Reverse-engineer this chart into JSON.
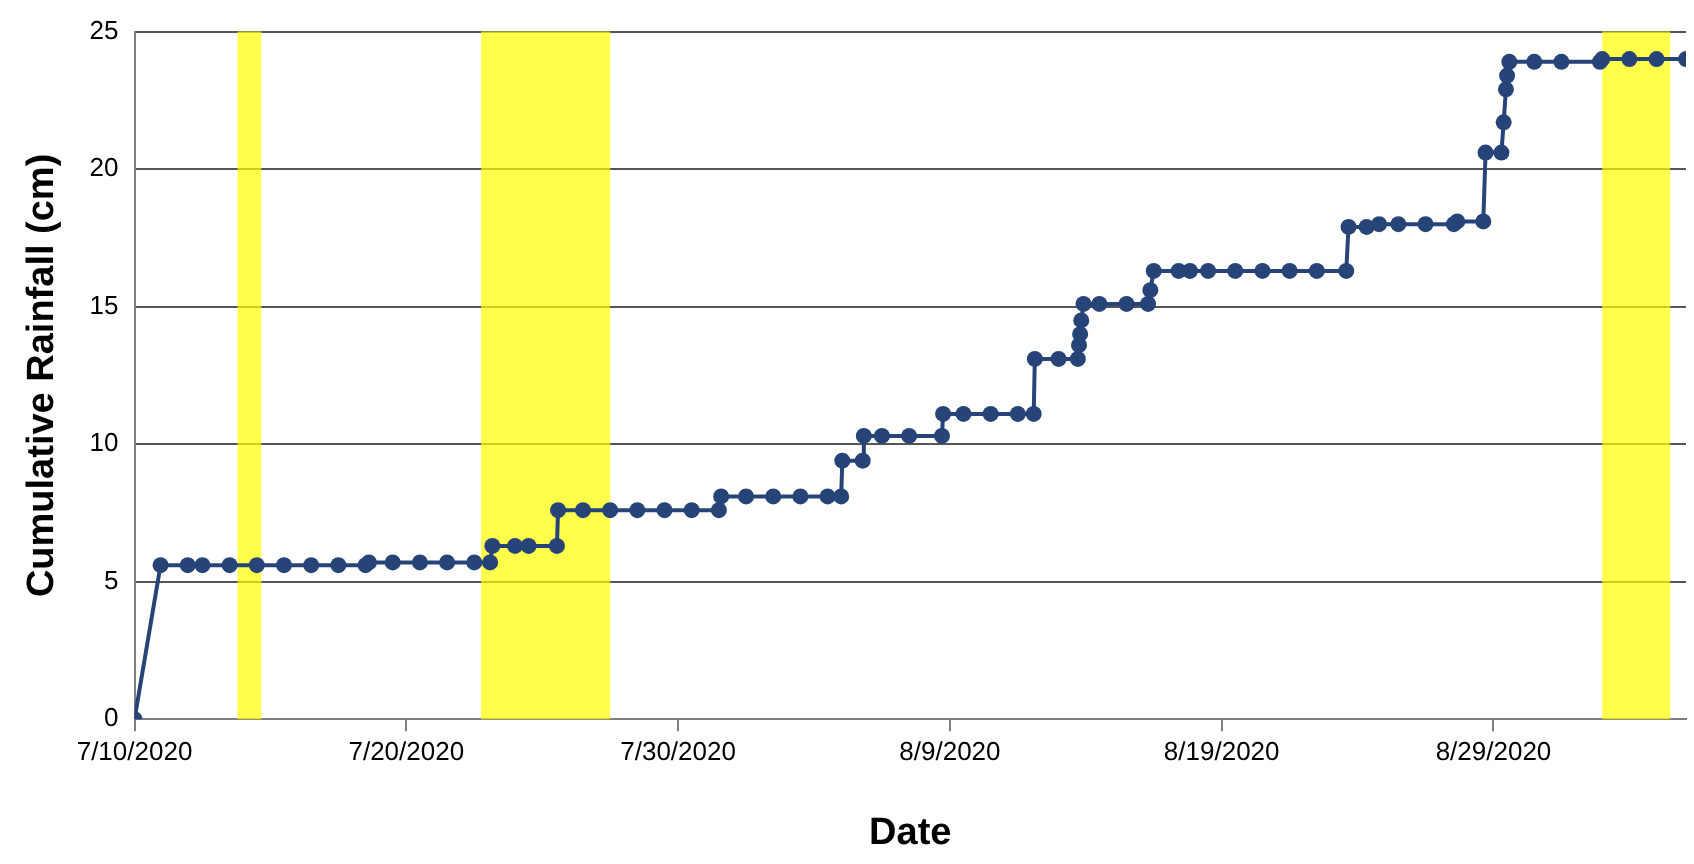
{
  "chart_data": {
    "type": "line",
    "xlabel": "Date",
    "ylabel": "Cumulative Rainfall (cm)",
    "xlim": [
      "2020-07-10",
      "2020-09-05T02:00"
    ],
    "ylim": [
      0,
      25
    ],
    "yticks": [
      0,
      5,
      10,
      15,
      20,
      25
    ],
    "xticks": [
      {
        "value": "2020-07-10",
        "label": "7/10/2020"
      },
      {
        "value": "2020-07-20",
        "label": "7/20/2020"
      },
      {
        "value": "2020-07-30",
        "label": "7/30/2020"
      },
      {
        "value": "2020-08-09",
        "label": "8/9/2020"
      },
      {
        "value": "2020-08-19",
        "label": "8/19/2020"
      },
      {
        "value": "2020-08-29",
        "label": "8/29/2020"
      }
    ],
    "grid": "y",
    "legend": false,
    "marker": "circle",
    "line_style": "solid",
    "bands": [
      {
        "axis": "x",
        "from": "2020-07-13T19:00",
        "to": "2020-07-14T16:00",
        "label": null,
        "color": "#ffff00"
      },
      {
        "axis": "x",
        "from": "2020-07-22T18:00",
        "to": "2020-07-27T12:00",
        "label": null,
        "color": "#ffff00"
      },
      {
        "axis": "x",
        "from": "2020-09-02T00:00",
        "to": "2020-09-04T12:00",
        "label": null,
        "color": "#ffff00"
      }
    ],
    "series": [
      {
        "color": "#264478",
        "x": [
          "2020-07-10T00:00",
          "2020-07-10T23:00",
          "2020-07-11T23:00",
          "2020-07-12T12:00",
          "2020-07-13T12:00",
          "2020-07-14T12:00",
          "2020-07-15T12:00",
          "2020-07-16T12:00",
          "2020-07-17T12:00",
          "2020-07-18T12:00",
          "2020-07-18T15:00",
          "2020-07-19T12:00",
          "2020-07-20T12:00",
          "2020-07-21T12:00",
          "2020-07-22T12:00",
          "2020-07-23T02:00",
          "2020-07-23T04:00",
          "2020-07-24T00:00",
          "2020-07-24T12:00",
          "2020-07-25T13:00",
          "2020-07-25T14:00",
          "2020-07-26T12:00",
          "2020-07-27T12:00",
          "2020-07-28T12:00",
          "2020-07-29T12:00",
          "2020-07-30T12:00",
          "2020-07-31T12:00",
          "2020-07-31T14:00",
          "2020-08-01T12:00",
          "2020-08-02T12:00",
          "2020-08-03T12:00",
          "2020-08-04T12:00",
          "2020-08-05T00:00",
          "2020-08-05T01:00",
          "2020-08-05T19:00",
          "2020-08-05T20:00",
          "2020-08-06T12:00",
          "2020-08-07T12:00",
          "2020-08-08T17:00",
          "2020-08-08T18:00",
          "2020-08-09T12:00",
          "2020-08-10T12:00",
          "2020-08-11T12:00",
          "2020-08-12T02:00",
          "2020-08-12T03:00",
          "2020-08-13T00:00",
          "2020-08-13T17:00",
          "2020-08-13T18:00",
          "2020-08-13T19:00",
          "2020-08-13T20:00",
          "2020-08-13T22:00",
          "2020-08-14T12:00",
          "2020-08-15T12:00",
          "2020-08-16T07:00",
          "2020-08-16T09:00",
          "2020-08-16T12:00",
          "2020-08-17T10:00",
          "2020-08-17T20:00",
          "2020-08-18T12:00",
          "2020-08-19T12:00",
          "2020-08-20T12:00",
          "2020-08-21T12:00",
          "2020-08-22T12:00",
          "2020-08-23T14:00",
          "2020-08-23T16:00",
          "2020-08-24T08:00",
          "2020-08-24T19:00",
          "2020-08-25T12:00",
          "2020-08-26T12:00",
          "2020-08-27T13:00",
          "2020-08-27T16:00",
          "2020-08-28T15:00",
          "2020-08-28T17:00",
          "2020-08-29T07:00",
          "2020-08-29T09:00",
          "2020-08-29T11:00",
          "2020-08-29T12:00",
          "2020-08-29T14:00",
          "2020-08-30T12:00",
          "2020-08-31T12:00",
          "2020-09-01T22:00",
          "2020-09-02T00:00",
          "2020-09-03T00:00",
          "2020-09-04T00:00",
          "2020-09-05T02:00"
        ],
        "values": [
          0,
          5.6,
          5.6,
          5.6,
          5.6,
          5.6,
          5.6,
          5.6,
          5.6,
          5.6,
          5.7,
          5.7,
          5.7,
          5.7,
          5.7,
          5.7,
          6.3,
          6.3,
          6.3,
          6.3,
          7.6,
          7.6,
          7.6,
          7.6,
          7.6,
          7.6,
          7.6,
          8.1,
          8.1,
          8.1,
          8.1,
          8.1,
          8.1,
          9.4,
          9.4,
          10.3,
          10.3,
          10.3,
          10.3,
          11.1,
          11.1,
          11.1,
          11.1,
          11.1,
          13.1,
          13.1,
          13.1,
          13.6,
          14.0,
          14.5,
          15.1,
          15.1,
          15.1,
          15.1,
          15.6,
          16.3,
          16.3,
          16.3,
          16.3,
          16.3,
          16.3,
          16.3,
          16.3,
          16.3,
          17.9,
          17.9,
          18.0,
          18.0,
          18.0,
          18.0,
          18.1,
          18.1,
          20.6,
          20.6,
          21.7,
          22.9,
          23.4,
          23.9,
          23.9,
          23.9,
          23.9,
          24.0,
          24.0,
          24.0,
          24.0
        ]
      }
    ]
  }
}
